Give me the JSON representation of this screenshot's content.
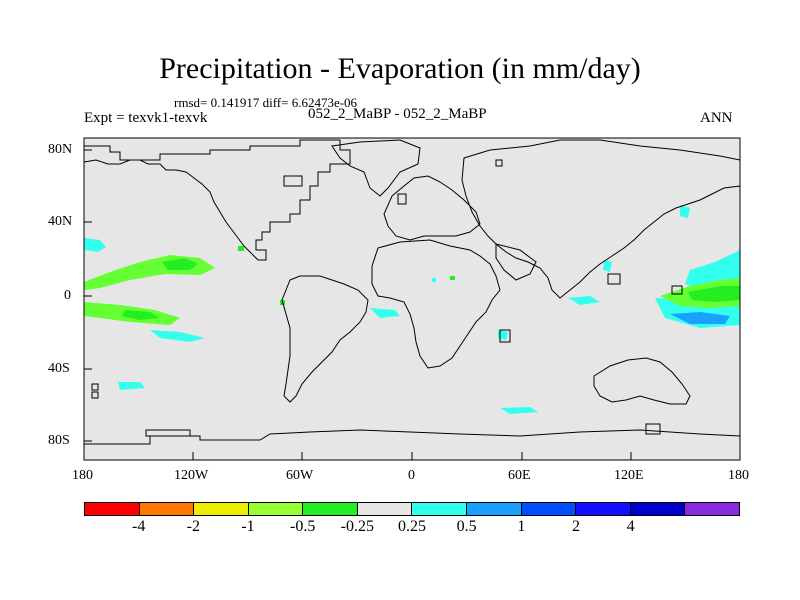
{
  "title": "Precipitation - Evaporation (in mm/day)",
  "stats": "rmsd= 0.141917  diff= 6.62473e-06",
  "experiment": "Expt = texvk1-texvk",
  "case_label": "052_2_MaBP - 052_2_MaBP",
  "season": "ANN",
  "colors": {
    "background": "#e6e6e6",
    "coastline": "#000000",
    "cyan": "#33ffee",
    "lightblue": "#1aa0ff",
    "blue": "#0050ff",
    "lightgreen": "#66ff33",
    "green": "#22ee22"
  },
  "map": {
    "lat_labels": [
      "80N",
      "40N",
      "0",
      "40S",
      "80S"
    ],
    "lon_labels": [
      "180",
      "120W",
      "60W",
      "0",
      "60E",
      "120E",
      "180"
    ]
  },
  "colorbar": {
    "colors": [
      "#ff0000",
      "#ff7700",
      "#eeee00",
      "#99ff33",
      "#22ee22",
      "#e6e6e6",
      "#33ffee",
      "#1aa0ff",
      "#0050ff",
      "#1010ff",
      "#0000cc",
      "#8a2be2"
    ],
    "labels": [
      "-4",
      "-2",
      "-1",
      "-0.5",
      "-0.25",
      "0.25",
      "0.5",
      "1",
      "2",
      "4"
    ]
  }
}
